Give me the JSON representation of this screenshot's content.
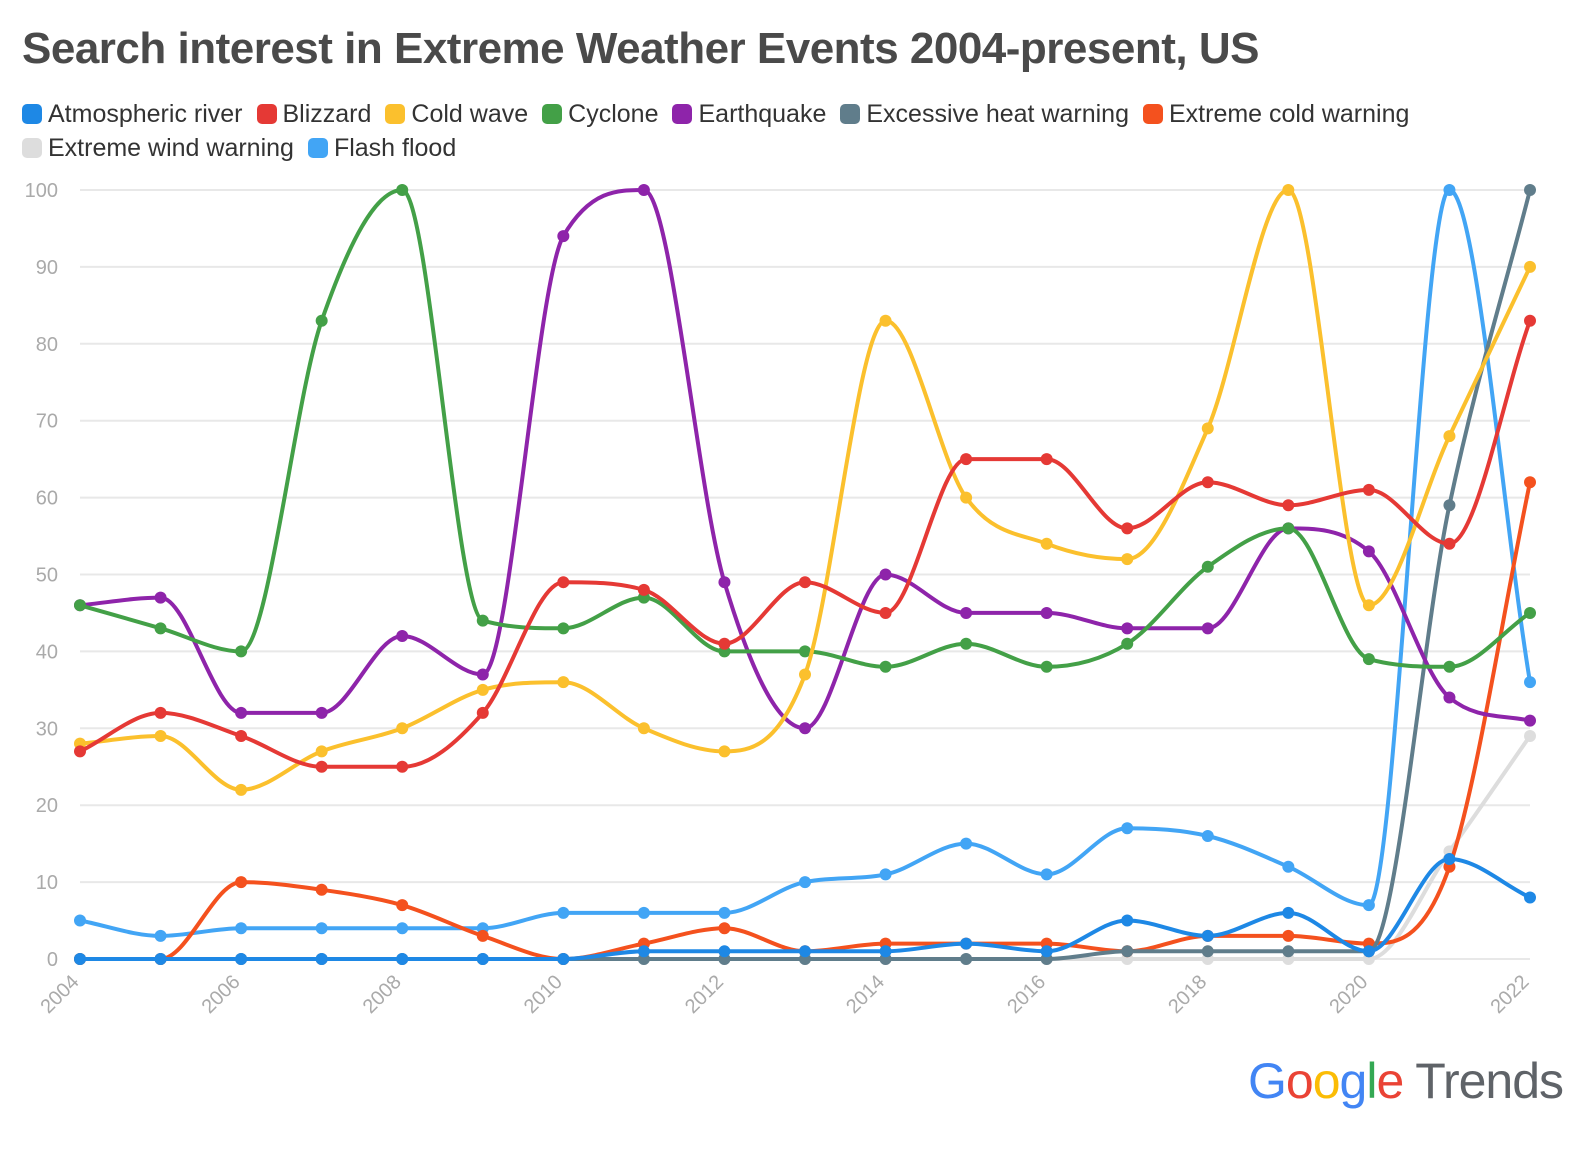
{
  "colors": {
    "Atmospheric river": "#1e88e5",
    "Blizzard": "#e53935",
    "Cold wave": "#fbc02d",
    "Cyclone": "#43a047",
    "Earthquake": "#8e24aa",
    "Excessive heat warning": "#607d8b",
    "Extreme cold warning": "#f4511e",
    "Extreme wind warning": "#dddddd",
    "Flash flood": "#42a5f5",
    "grid": "#e8e8e8",
    "tick": "#aaaaaa"
  },
  "logo": {
    "letters": [
      "G",
      "o",
      "o",
      "g",
      "l",
      "e"
    ],
    "letter_colors": [
      "#4285F4",
      "#EA4335",
      "#FBBC05",
      "#4285F4",
      "#34A853",
      "#EA4335"
    ],
    "trends": "Trends"
  },
  "chart_data": {
    "type": "line",
    "title": "Search interest in Extreme Weather Events 2004-present, US",
    "x": [
      2004,
      2005,
      2006,
      2007,
      2008,
      2009,
      2010,
      2011,
      2012,
      2013,
      2014,
      2015,
      2016,
      2017,
      2018,
      2019,
      2020,
      2021,
      2022
    ],
    "xticks": [
      2004,
      2006,
      2008,
      2010,
      2012,
      2014,
      2016,
      2018,
      2020,
      2022
    ],
    "ylim": [
      0,
      100
    ],
    "yticks": [
      0,
      10,
      20,
      30,
      40,
      50,
      60,
      70,
      80,
      90,
      100
    ],
    "grid": true,
    "legend_position": "top",
    "series": [
      {
        "name": "Atmospheric river",
        "values": [
          0,
          0,
          0,
          0,
          0,
          0,
          0,
          1,
          1,
          1,
          1,
          2,
          1,
          5,
          3,
          6,
          1,
          13,
          8
        ]
      },
      {
        "name": "Blizzard",
        "values": [
          27,
          32,
          29,
          25,
          25,
          32,
          49,
          48,
          41,
          49,
          45,
          65,
          65,
          56,
          62,
          59,
          61,
          54,
          83
        ]
      },
      {
        "name": "Cold wave",
        "values": [
          28,
          29,
          22,
          27,
          30,
          35,
          36,
          30,
          27,
          37,
          83,
          60,
          54,
          52,
          69,
          100,
          46,
          68,
          90
        ]
      },
      {
        "name": "Cyclone",
        "values": [
          46,
          43,
          40,
          83,
          100,
          44,
          43,
          47,
          40,
          40,
          38,
          41,
          38,
          41,
          51,
          56,
          39,
          38,
          45
        ]
      },
      {
        "name": "Earthquake",
        "values": [
          46,
          47,
          32,
          32,
          42,
          37,
          94,
          100,
          49,
          30,
          50,
          45,
          45,
          43,
          43,
          56,
          53,
          34,
          31
        ]
      },
      {
        "name": "Excessive heat warning",
        "values": [
          0,
          0,
          0,
          0,
          0,
          0,
          0,
          0,
          0,
          0,
          0,
          0,
          0,
          1,
          1,
          1,
          1,
          59,
          100
        ]
      },
      {
        "name": "Extreme cold warning",
        "values": [
          0,
          0,
          10,
          9,
          7,
          3,
          0,
          2,
          4,
          1,
          2,
          2,
          2,
          1,
          3,
          3,
          2,
          12,
          62
        ]
      },
      {
        "name": "Extreme wind warning",
        "values": [
          0,
          0,
          0,
          0,
          0,
          0,
          0,
          0,
          0,
          0,
          0,
          0,
          0,
          0,
          0,
          0,
          0,
          14,
          29
        ]
      },
      {
        "name": "Flash flood",
        "values": [
          5,
          3,
          4,
          4,
          4,
          4,
          6,
          6,
          6,
          10,
          11,
          15,
          11,
          17,
          16,
          12,
          7,
          100,
          36
        ]
      }
    ]
  }
}
